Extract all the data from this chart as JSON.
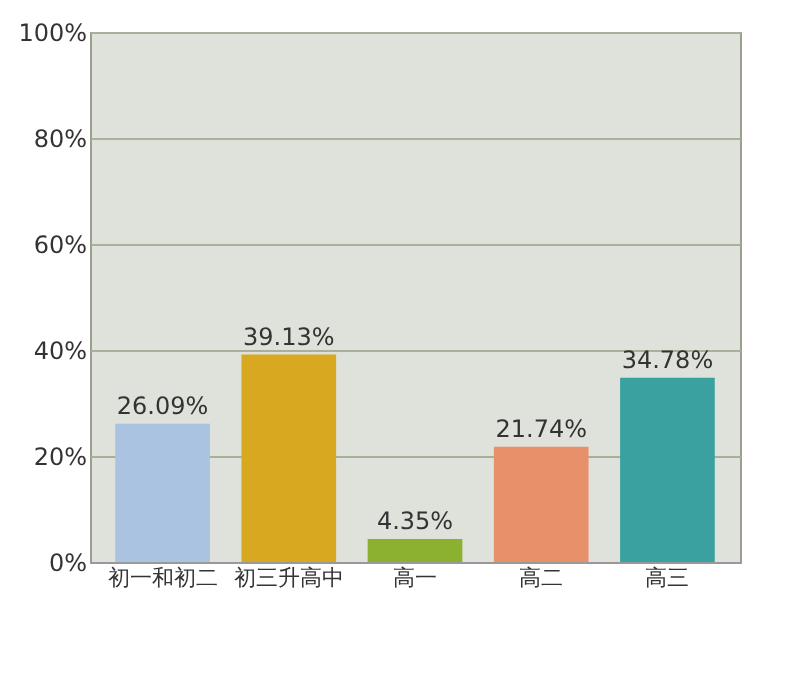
{
  "chart_data": {
    "type": "bar",
    "categories": [
      "初一和初二",
      "初三升高中",
      "高一",
      "高二",
      "高三"
    ],
    "values": [
      26.09,
      39.13,
      4.35,
      21.74,
      34.78
    ],
    "value_labels": [
      "26.09%",
      "39.13%",
      "4.35%",
      "21.74%",
      "34.78%"
    ],
    "colors": [
      "#a9c3e0",
      "#d8a820",
      "#8cb030",
      "#e8906a",
      "#3aa0a0"
    ],
    "ylim": [
      0,
      100
    ],
    "yticks": [
      {
        "value": 0,
        "label": "0%"
      },
      {
        "value": 20,
        "label": "20%"
      },
      {
        "value": 40,
        "label": "40%"
      },
      {
        "value": 60,
        "label": "60%"
      },
      {
        "value": 80,
        "label": "80%"
      },
      {
        "value": 100,
        "label": "100%"
      }
    ],
    "grid": "y"
  }
}
